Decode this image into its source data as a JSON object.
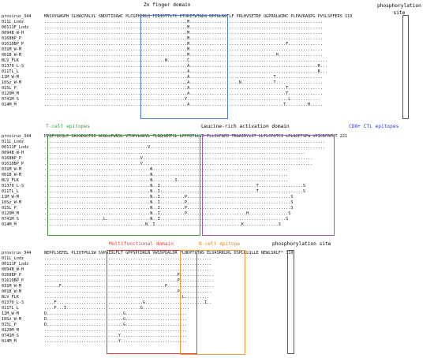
{
  "labels": {
    "zn": "Zn finger domain",
    "phos1": "phosphorylation\nsite",
    "tcell": "T-cell epitopes",
    "leucine": "Leucine-rich activation domain",
    "cd8": "CD8+ CTL epitopes",
    "multi": "Multifunctional domain",
    "bcell": "B-cell epitope",
    "phos2": "phosphorylation site"
  },
  "colors": {
    "blue": "#4a7fd0",
    "green": "#3c9a3c",
    "purple": "#9b59b6",
    "red": "#e03c3c",
    "orange": "#f0a040",
    "gray": "#555555",
    "blueText": "#2b39c9"
  },
  "blocks": [
    {
      "ruler": "provirus_344",
      "names": [
        "provirus_344",
        "011L_Lodz",
        "00111F_Lodz",
        "0094B_W-H",
        "0168BP_P",
        "01610BP_P",
        "031M_W-M",
        "001B_W-M",
        "BLV_FLK",
        "01370_L-S",
        "011TL_L",
        "11M_W-M",
        "10Sz_W-M",
        "015L_P",
        "0120M_M",
        "0741M_S",
        "014M_M"
      ],
      "seqs": [
        "MASVVGWGPH SLHACPALVL SNDVTIDAWC PLCGPHERLQ FERIDTTLTC ETHRITWTADG RPPGLNGTLF PRLHVSETRP QGPRRLWINC PLPAVRAQPG PVSLSPFERS 110",
        "..........................................................M......................................................",
        "..........................................................M......................................................",
        "..........................................................M......................................................",
        "..........................................................M......................................................",
        "..........................................................M.......................................F..............",
        "..........................................................M......................................................",
        "..........................................................M...................................H..................",
        ".................................................N........C........................................................",
        "..........................................................A....................................................R...",
        "..........................................................A....................................................R...",
        "..........................................................A..................................T...................",
        "..........................................................A....................N.............T...................",
        "..........................................................A.......................................T..............",
        "..........................................................A.......................................T..............",
        ".........................................................Y.........................................L............",
        "..........................................................A......................................T.........H....."
      ]
    },
    {
      "ruler": "provirus_344",
      "names": [
        "provirus_344",
        "011L_Lodz",
        "00111F_Lodz",
        "0094B_W-H",
        "0168BP_P",
        "01610BP_P",
        "031M_W-M",
        "001B_W-M",
        "BLV_FLK",
        "01370_L-S",
        "011TL_L",
        "11M_W-M",
        "10Sz_W-M",
        "015L_P",
        "0120M_M",
        "0741M_S",
        "014M_M"
      ],
      "seqs": [
        "PFQPYQCQLP SASSDGCPII GHGLLPWNSL VTHPVLGKVL TLNQHAMPSL LPPPDTLLVD PLLSVFAPD TRGAIRYLST LLTLCPATCI LPLGKPFSPW VPICRFRPDT 221",
        "..................................................................................................................",
        "..........................................V.......................................................................",
        "..........................................................................................................",
        ".......................................V.....................................................................",
        ".......................................V.....................................................................",
        "...........................................N.......................................................",
        "...........................................N.......................................................",
        "...........................................N.........S.............................................",
        "...........................................N..I.......................................T..................S",
        "...........................................N..I.......................................T..................S",
        "...........................................N..I..........P..........................................S",
        "...........................................N..I..........P..........................................S",
        "...........................................N..I..........P..........................................S",
        "...........................................N..I..........P........................H................S",
        "........................L..................N..I...................................................S",
        ".........................................N..I...................................K..............S"
      ]
    },
    {
      "ruler": "provirus_344",
      "names": [
        "provirus_344",
        "011L_Lodz",
        "00111F_Lodz",
        "0094B_W-H",
        "0168BP_P",
        "01610BP_P",
        "031M_W-M",
        "001B_W-M",
        "BLV_FLK",
        "01370_L-S",
        "011TL_L",
        "11M_W-M",
        "10Sz_W-M",
        "015L_P",
        "0120M_M",
        "0741M_S",
        "014M_M"
      ],
      "seqs": [
        "NEPPLSEFEL PLIQTPGLSW SVPAIDLFLT GPPSPCDRLN VWSSPQALQR FLHDPTLTWS ELVASRKLRL DSPLKLQLLE NEWLSRLF* 310",
        "....................................................................",
        "....................................................................",
        "....................................................................",
        "......................................................P..............",
        "......................................................P..............",
        "......F..........................................P...................",
        "......................................................P.............",
        "........................................................L..........",
        "....F...................................G........................I..",
        "....F...I..............................G...................",
        "D...............................G.........................",
        "D...............................G.........................",
        "D...............................G.........................",
        "..........................................................",
        "..............................Y...........................",
        "..............................Y..........................."
      ]
    }
  ]
}
